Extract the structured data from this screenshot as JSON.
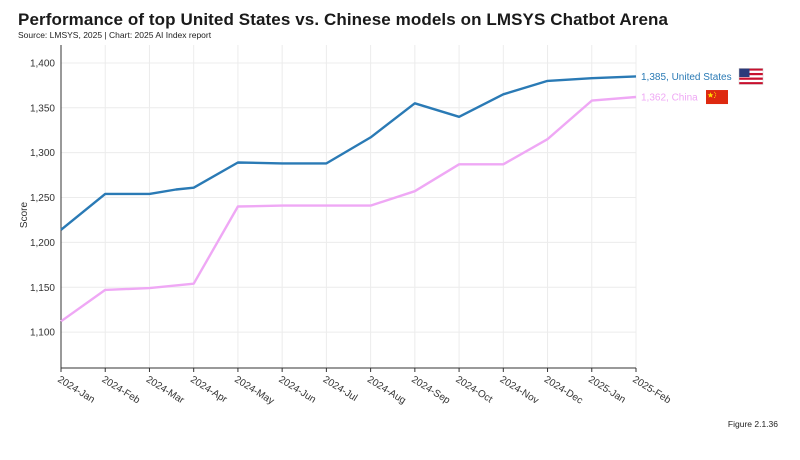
{
  "header": {
    "title": "Performance of top United States vs. Chinese models on LMSYS Chatbot Arena",
    "subtitle": "Source: LMSYS, 2025 | Chart: 2025 AI Index report"
  },
  "footer": {
    "figure": "Figure 2.1.36"
  },
  "chart_data": {
    "type": "line",
    "title": "Performance of top United States vs. Chinese models on LMSYS Chatbot Arena",
    "xlabel": "",
    "ylabel": "Score",
    "categories": [
      "2024-Jan",
      "2024-Feb",
      "2024-Mar",
      "2024-Apr",
      "2024-May",
      "2024-Jun",
      "2024-Jul",
      "2024-Aug",
      "2024-Sep",
      "2024-Oct",
      "2024-Nov",
      "2024-Dec",
      "2025-Jan",
      "2025-Feb"
    ],
    "ylim": [
      1060,
      1420
    ],
    "yticks": [
      1100,
      1150,
      1200,
      1250,
      1300,
      1350,
      1400
    ],
    "ytick_labels": [
      "1,100",
      "1,150",
      "1,200",
      "1,250",
      "1,300",
      "1,350",
      "1,400"
    ],
    "grid": true,
    "series": [
      {
        "name": "United States",
        "color": "#2a7ab5",
        "end_label": "1,385, United States",
        "flag": "us-flag-icon",
        "points": [
          {
            "x": 0,
            "y": 1214
          },
          {
            "x": 1,
            "y": 1254
          },
          {
            "x": 2,
            "y": 1254
          },
          {
            "x": 2.6,
            "y": 1259
          },
          {
            "x": 3,
            "y": 1261
          },
          {
            "x": 4,
            "y": 1289
          },
          {
            "x": 5,
            "y": 1288
          },
          {
            "x": 6,
            "y": 1288
          },
          {
            "x": 7,
            "y": 1317
          },
          {
            "x": 8,
            "y": 1355
          },
          {
            "x": 9,
            "y": 1340
          },
          {
            "x": 10,
            "y": 1365
          },
          {
            "x": 11,
            "y": 1380
          },
          {
            "x": 12,
            "y": 1383
          },
          {
            "x": 13,
            "y": 1385
          }
        ]
      },
      {
        "name": "China",
        "color": "#efa8f5",
        "end_label": "1,362, China",
        "flag": "china-flag-icon",
        "points": [
          {
            "x": 0,
            "y": 1112
          },
          {
            "x": 1,
            "y": 1147
          },
          {
            "x": 2,
            "y": 1149
          },
          {
            "x": 3,
            "y": 1154
          },
          {
            "x": 4,
            "y": 1240
          },
          {
            "x": 5,
            "y": 1241
          },
          {
            "x": 6,
            "y": 1241
          },
          {
            "x": 7,
            "y": 1241
          },
          {
            "x": 8,
            "y": 1257
          },
          {
            "x": 9,
            "y": 1287
          },
          {
            "x": 10,
            "y": 1287
          },
          {
            "x": 11,
            "y": 1315
          },
          {
            "x": 12,
            "y": 1358
          },
          {
            "x": 13,
            "y": 1362
          }
        ]
      }
    ]
  }
}
